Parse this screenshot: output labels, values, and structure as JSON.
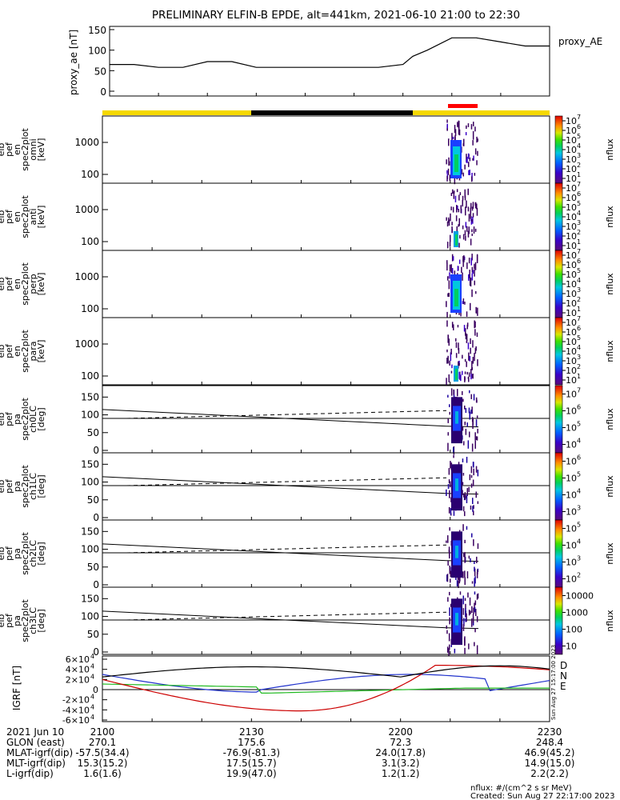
{
  "title": "PRELIMINARY ELFIN-B EPDE, alt=441km, 2021-06-10 21:00 to 22:30",
  "colors": {
    "sci_zone_bar": "#f5d800",
    "shadow_bar": "#000000",
    "selected_bar": "#ff0000",
    "grf_D": "#cc0000",
    "grf_N": "#2233cc",
    "grf_E": "#22bb22"
  },
  "chart_data": [
    {
      "type": "line",
      "panel": "proxy_ae",
      "ylabel": "proxy_ae [nT]",
      "legend": "proxy_AE",
      "ylim": [
        0,
        150
      ],
      "yticks": [
        "0",
        "50",
        "100",
        "150"
      ],
      "x_minutes": [
        0,
        5,
        10,
        15,
        20,
        25,
        30,
        35,
        40,
        45,
        50,
        55,
        60,
        62,
        65,
        70,
        75,
        80,
        85,
        90
      ],
      "values": [
        65,
        65,
        58,
        58,
        72,
        72,
        58,
        58,
        58,
        58,
        58,
        58,
        65,
        85,
        100,
        130,
        130,
        120,
        110,
        110
      ]
    },
    {
      "type": "heatmap",
      "panel": "spec2plot_en_omni",
      "ylabel": "elb pef en spec2plot omni [keV]",
      "yticks": [
        "100",
        "1000"
      ],
      "zlabel": "nflux",
      "colorbar_ticks": [
        "10",
        "10",
        "10",
        "10",
        "10",
        "10",
        "10"
      ],
      "colorbar_exp": [
        "1",
        "2",
        "3",
        "4",
        "5",
        "6",
        "7"
      ]
    },
    {
      "type": "heatmap",
      "panel": "spec2plot_en_anti",
      "ylabel": "elb pef en spec2plot anti [keV]",
      "yticks": [
        "100",
        "1000"
      ],
      "zlabel": "nflux",
      "colorbar_ticks": [
        "10",
        "10",
        "10",
        "10",
        "10",
        "10",
        "10"
      ],
      "colorbar_exp": [
        "1",
        "2",
        "3",
        "4",
        "5",
        "6",
        "7"
      ]
    },
    {
      "type": "heatmap",
      "panel": "spec2plot_en_perp",
      "ylabel": "elb pef en spec2plot perp [keV]",
      "yticks": [
        "100",
        "1000"
      ],
      "zlabel": "nflux",
      "colorbar_ticks": [
        "10",
        "10",
        "10",
        "10",
        "10",
        "10",
        "10"
      ],
      "colorbar_exp": [
        "1",
        "2",
        "3",
        "4",
        "5",
        "6",
        "7"
      ]
    },
    {
      "type": "heatmap",
      "panel": "spec2plot_en_para",
      "ylabel": "elb pef en spec2plot para [keV]",
      "yticks": [
        "100",
        "1000"
      ],
      "zlabel": "nflux",
      "colorbar_ticks": [
        "10",
        "10",
        "10",
        "10",
        "10",
        "10",
        "10"
      ],
      "colorbar_exp": [
        "1",
        "2",
        "3",
        "4",
        "5",
        "6",
        "7"
      ]
    },
    {
      "type": "heatmap",
      "panel": "spec2plot_pa_ch0LC",
      "ylabel": "elb pef pa spec2plot ch0LC [deg]",
      "ylim": [
        0,
        180
      ],
      "yticks": [
        "0",
        "50",
        "100",
        "150"
      ],
      "zlabel": "nflux",
      "colorbar_ticks": [
        "10",
        "10",
        "10",
        "10"
      ],
      "colorbar_exp": [
        "4",
        "5",
        "6",
        "7"
      ]
    },
    {
      "type": "heatmap",
      "panel": "spec2plot_pa_ch1LC",
      "ylabel": "elb pef pa spec2plot ch1LC [deg]",
      "ylim": [
        0,
        180
      ],
      "yticks": [
        "0",
        "50",
        "100",
        "150"
      ],
      "zlabel": "nflux",
      "colorbar_ticks": [
        "10",
        "10",
        "10",
        "10"
      ],
      "colorbar_exp": [
        "3",
        "4",
        "5",
        "6"
      ]
    },
    {
      "type": "heatmap",
      "panel": "spec2plot_pa_ch2LC",
      "ylabel": "elb pef pa spec2plot ch2LC [deg]",
      "ylim": [
        0,
        180
      ],
      "yticks": [
        "0",
        "50",
        "100",
        "150"
      ],
      "zlabel": "nflux",
      "colorbar_ticks": [
        "10",
        "10",
        "10",
        "10"
      ],
      "colorbar_exp": [
        "2",
        "3",
        "4",
        "5"
      ]
    },
    {
      "type": "heatmap",
      "panel": "spec2plot_pa_ch3LC",
      "ylabel": "elb pef pa spec2plot ch3LC [deg]",
      "ylim": [
        0,
        180
      ],
      "yticks": [
        "0",
        "50",
        "100",
        "150"
      ],
      "zlabel": "nflux",
      "colorbar_ticks": [
        "10",
        "100",
        "1000",
        "10000"
      ]
    },
    {
      "type": "line",
      "panel": "igrf",
      "ylabel": "IGRF [nT]",
      "ylim": [
        -60000,
        60000
      ],
      "ytick_mant": [
        "-6",
        "-4",
        "-2",
        "0",
        "2",
        "4",
        "6"
      ],
      "ytick_base": "×10",
      "ytick_exp": "4",
      "ytick_zero": "0",
      "legend": [
        "D",
        "N",
        "E"
      ]
    }
  ],
  "xaxis": {
    "tick_labels": [
      "2100",
      "2130",
      "2200",
      "2230"
    ],
    "date_label": "2021 Jun 10"
  },
  "ephemeris": [
    {
      "label": "GLON (east)",
      "values": [
        "270.1",
        "175.6",
        "72.3",
        "248.4"
      ]
    },
    {
      "label": "MLAT-igrf(dip)",
      "values": [
        "-57.5(34.4)",
        "-76.9(-81.3)",
        "24.0(17.8)",
        "46.9(45.2)"
      ]
    },
    {
      "label": "MLT-igrf(dip)",
      "values": [
        "15.3(15.2)",
        "17.5(15.7)",
        "3.1(3.2)",
        "14.9(15.0)"
      ]
    },
    {
      "label": "L-igrf(dip)",
      "values": [
        "1.6(1.6)",
        "19.9(47.0)",
        "1.2(1.2)",
        "2.2(2.2)"
      ]
    }
  ],
  "footer": {
    "units": "nflux: #/(cm^2 s sr MeV)",
    "created": "Created: Sun Aug 27 22:17:00 2023",
    "side_stamp": "Sun Aug 27 15:17:00 2023"
  }
}
